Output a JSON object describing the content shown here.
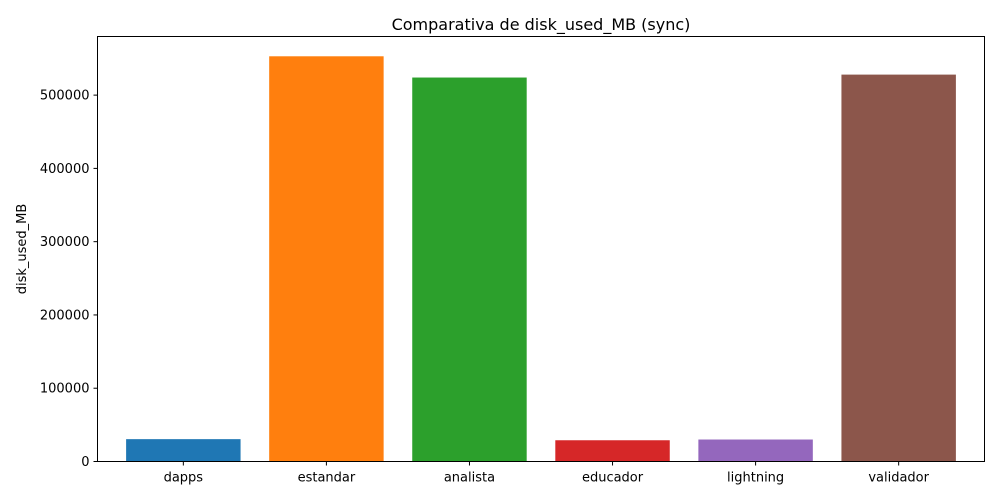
{
  "chart_data": {
    "type": "bar",
    "title": "Comparativa de disk_used_MB (sync)",
    "xlabel": "",
    "ylabel": "disk_used_MB",
    "categories": [
      "dapps",
      "estandar",
      "analista",
      "educador",
      "lightning",
      "validador"
    ],
    "values": [
      30500,
      553000,
      524000,
      29000,
      30000,
      528000
    ],
    "colors": [
      "#1f77b4",
      "#ff7f0e",
      "#2ca02c",
      "#d62728",
      "#9467bd",
      "#8c564b"
    ],
    "ylim": [
      0,
      580000
    ],
    "yticks": [
      0,
      100000,
      200000,
      300000,
      400000,
      500000
    ],
    "grid": false
  }
}
